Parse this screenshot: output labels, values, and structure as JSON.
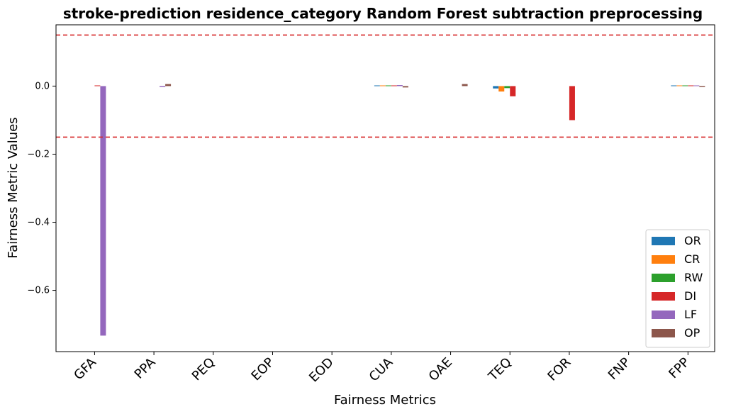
{
  "chart_data": {
    "type": "bar",
    "title": "stroke-prediction residence_category Random Forest subtraction preprocessing",
    "xlabel": "Fairness Metrics",
    "ylabel": "Fairness Metric Values",
    "categories": [
      "GFA",
      "PPA",
      "PEQ",
      "EOP",
      "EOD",
      "CUA",
      "OAE",
      "TEQ",
      "FOR",
      "FNP",
      "FPP"
    ],
    "ylim": [
      -0.78,
      0.18
    ],
    "yticks": [
      0.0,
      -0.2,
      -0.4,
      -0.6
    ],
    "ytick_labels": [
      "0.0",
      "−0.2",
      "−0.4",
      "−0.6"
    ],
    "thresholds": [
      0.15,
      -0.15
    ],
    "threshold_color": "#d62728",
    "legend_position": "lower-right",
    "series": [
      {
        "name": "OR",
        "color": "#1f77b4",
        "values": [
          0,
          0,
          0,
          0,
          0,
          0.002,
          0,
          -0.007,
          0,
          0,
          0.002
        ]
      },
      {
        "name": "CR",
        "color": "#ff7f0e",
        "values": [
          0,
          0,
          0,
          0,
          0,
          0.002,
          0,
          -0.016,
          0,
          0,
          0.002
        ]
      },
      {
        "name": "RW",
        "color": "#2ca02c",
        "values": [
          0,
          0,
          0,
          0,
          0,
          0.002,
          0,
          -0.006,
          0,
          0,
          0.002
        ]
      },
      {
        "name": "DI",
        "color": "#d62728",
        "values": [
          0.002,
          0,
          0,
          0,
          0,
          0.002,
          0,
          -0.03,
          -0.1,
          0,
          0.002
        ]
      },
      {
        "name": "LF",
        "color": "#9467bd",
        "values": [
          -0.733,
          -0.003,
          0,
          0,
          0,
          0.003,
          0,
          0,
          0,
          0,
          0.002
        ]
      },
      {
        "name": "OP",
        "color": "#8c564b",
        "values": [
          0,
          0.006,
          0,
          0,
          0,
          -0.004,
          0.006,
          0,
          0,
          0,
          -0.003
        ]
      }
    ]
  }
}
